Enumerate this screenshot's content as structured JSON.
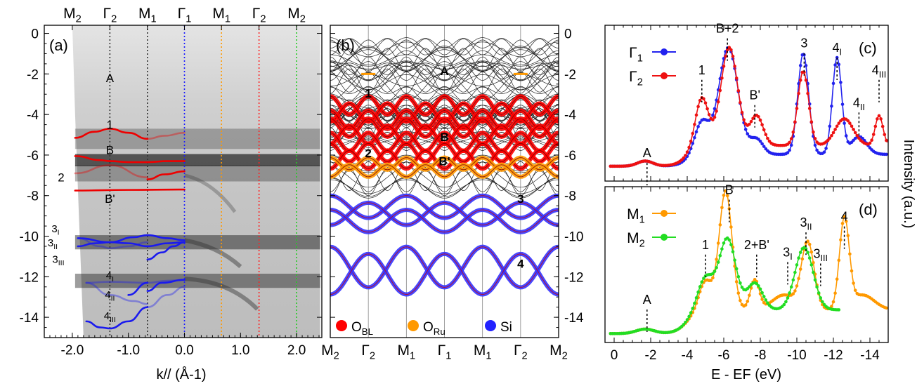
{
  "chart_data": [
    {
      "panel": "(a)",
      "type": "heatmap",
      "xlabel": "k// (Å-1)",
      "x_ticks": [
        -2.0,
        -1.0,
        0.0,
        1.0,
        2.0
      ],
      "x_tick_labels": [
        "-2.0",
        "-1.0",
        "0.0",
        "1.0",
        "2.0"
      ],
      "xlim": [
        -2.5,
        2.45
      ],
      "ylim": [
        -15,
        0.4
      ],
      "y_ticks": [
        0,
        -2,
        -4,
        -6,
        -8,
        -10,
        -12,
        -14
      ],
      "top_labels": [
        {
          "text": "M",
          "sub": "2",
          "k": -2.0
        },
        {
          "text": "Γ",
          "sub": "2",
          "k": -1.33
        },
        {
          "text": "M",
          "sub": "1",
          "k": -0.66
        },
        {
          "text": "Γ",
          "sub": "1",
          "k": 0.0
        },
        {
          "text": "M",
          "sub": "1",
          "k": 0.66
        },
        {
          "text": "Γ",
          "sub": "2",
          "k": 1.33
        },
        {
          "text": "M",
          "sub": "2",
          "k": 2.0
        }
      ],
      "vlines": [
        {
          "k": -1.33,
          "color": "#333333"
        },
        {
          "k": -0.66,
          "color": "#333333"
        },
        {
          "k": 0.0,
          "color": "#1a1aff"
        },
        {
          "k": 0.66,
          "color": "#ff9900"
        },
        {
          "k": 1.33,
          "color": "#ff2222"
        },
        {
          "k": 2.0,
          "color": "#22cc22"
        }
      ],
      "intensity_bands": [
        {
          "e": -5.2,
          "w": 0.5,
          "a": 0.35
        },
        {
          "e": -6.25,
          "w": 0.3,
          "a": 0.85
        },
        {
          "e": -6.9,
          "w": 0.4,
          "a": 0.4
        },
        {
          "e": -10.3,
          "w": 0.35,
          "a": 0.6
        },
        {
          "e": -12.2,
          "w": 0.35,
          "a": 0.55
        }
      ],
      "bands": [
        {
          "name": "A",
          "color": "#ff8800",
          "label_k": -1.33,
          "label_e": -2.2,
          "points": []
        },
        {
          "name": "1",
          "color": "#ee0000",
          "label_k": -1.33,
          "label_e": -4.5,
          "points": [
            [
              -1.95,
              -5.15
            ],
            [
              -1.6,
              -4.85
            ],
            [
              -1.33,
              -4.7
            ],
            [
              -1.0,
              -4.9
            ],
            [
              -0.66,
              -5.2
            ]
          ]
        },
        {
          "name": "1f",
          "color": "#ee0000",
          "faint": true,
          "points": [
            [
              -0.66,
              -5.2
            ],
            [
              -0.35,
              -5.05
            ],
            [
              0.0,
              -4.9
            ]
          ]
        },
        {
          "name": "B",
          "color": "#ee0000",
          "label_k": -1.33,
          "label_e": -5.75,
          "points": [
            [
              -1.95,
              -6.05
            ],
            [
              -1.5,
              -6.25
            ],
            [
              -1.33,
              -6.3
            ],
            [
              -1.0,
              -6.35
            ],
            [
              -0.66,
              -6.35
            ],
            [
              -0.3,
              -6.3
            ],
            [
              0.0,
              -6.3
            ]
          ]
        },
        {
          "name": "2",
          "color": "#ee0000",
          "label_k": -2.2,
          "label_e": -7.1,
          "faint": true,
          "points": [
            [
              -1.95,
              -6.9
            ],
            [
              -1.33,
              -6.5
            ],
            [
              -0.66,
              -7.1
            ]
          ]
        },
        {
          "name": "2b",
          "color": "#ee0000",
          "points": [
            [
              -0.66,
              -7.2
            ],
            [
              -0.35,
              -6.95
            ],
            [
              0.0,
              -6.8
            ]
          ]
        },
        {
          "name": "B'",
          "color": "#ee0000",
          "label_k": -1.33,
          "label_e": -8.15,
          "points": [
            [
              -1.95,
              -7.75
            ],
            [
              -1.0,
              -7.72
            ],
            [
              0.0,
              -7.7
            ]
          ]
        },
        {
          "name": "3a",
          "color": "#1a1aee",
          "label": "3",
          "sub": "I",
          "label_k": -2.3,
          "label_e": -9.6,
          "points": [
            [
              -1.9,
              -10.1
            ],
            [
              -1.33,
              -10.3
            ],
            [
              -0.9,
              -10.05
            ],
            [
              -0.66,
              -9.95
            ],
            [
              -0.3,
              -10.1
            ],
            [
              0.0,
              -10.2
            ]
          ]
        },
        {
          "name": "3b",
          "color": "#1a1aee",
          "label": "3",
          "sub": "II",
          "label_k": -2.35,
          "label_e": -10.3,
          "points": [
            [
              -1.9,
              -10.5
            ],
            [
              -1.6,
              -10.35
            ],
            [
              -1.33,
              -10.3
            ],
            [
              -1.0,
              -10.35
            ],
            [
              -0.66,
              -10.5
            ],
            [
              -0.3,
              -10.35
            ],
            [
              0.0,
              -10.3
            ]
          ]
        },
        {
          "name": "3c",
          "color": "#1a1aee",
          "label": "3",
          "sub": "III",
          "label_k": -2.25,
          "label_e": -11.1,
          "points": [
            [
              -0.66,
              -11.15
            ],
            [
              -0.4,
              -10.8
            ],
            [
              -0.2,
              -10.5
            ],
            [
              0.0,
              -10.3
            ]
          ]
        },
        {
          "name": "3f",
          "color": "#1a1aee",
          "faint": true,
          "points": [
            [
              -1.9,
              -10.1
            ],
            [
              -1.5,
              -10.5
            ],
            [
              -1.33,
              -10.6
            ],
            [
              -1.0,
              -10.5
            ],
            [
              -0.66,
              -10.3
            ]
          ]
        },
        {
          "name": "4a",
          "color": "#1a1aee",
          "label": "4",
          "sub": "I",
          "label_k": -1.33,
          "label_e": -11.9,
          "faint": true,
          "points": [
            [
              -1.75,
              -12.3
            ],
            [
              -1.33,
              -12.25
            ],
            [
              -0.66,
              -12.3
            ],
            [
              -0.3,
              -12.2
            ],
            [
              0.0,
              -12.15
            ]
          ]
        },
        {
          "name": "4ab",
          "color": "#1a1aee",
          "points": [
            [
              -0.66,
              -12.7
            ],
            [
              -0.4,
              -12.3
            ],
            [
              0.0,
              -12.15
            ]
          ]
        },
        {
          "name": "4b",
          "color": "#1a1aee",
          "label": "4",
          "sub": "II",
          "label_k": -1.33,
          "label_e": -12.85,
          "faint": true,
          "points": [
            [
              -1.75,
              -12.3
            ],
            [
              -1.33,
              -12.9
            ],
            [
              -0.9,
              -13.2
            ],
            [
              -0.66,
              -13.35
            ]
          ]
        },
        {
          "name": "4bb",
          "color": "#1a1aee",
          "points": [
            [
              -1.0,
              -12.9
            ],
            [
              -0.66,
              -12.3
            ]
          ]
        },
        {
          "name": "4c",
          "color": "#1a1aee",
          "label": "4",
          "sub": "III",
          "label_k": -1.33,
          "label_e": -13.9,
          "points": [
            [
              -1.75,
              -14.2
            ],
            [
              -1.5,
              -14.5
            ],
            [
              -1.33,
              -14.55
            ],
            [
              -1.0,
              -14.2
            ],
            [
              -0.66,
              -13.5
            ]
          ]
        },
        {
          "name": "4cf",
          "color": "#1a1aee",
          "faint": true,
          "points": [
            [
              -0.66,
              -13.5
            ],
            [
              -0.3,
              -12.9
            ],
            [
              0.0,
              -12.5
            ]
          ]
        }
      ]
    },
    {
      "panel": "(b)",
      "type": "line",
      "ylim": [
        -15,
        0.4
      ],
      "y_ticks": [
        0,
        -2,
        -4,
        -6,
        -8,
        -10,
        -12,
        -14
      ],
      "x_labels": [
        {
          "text": "M",
          "sub": "2"
        },
        {
          "text": "Γ",
          "sub": "2"
        },
        {
          "text": "M",
          "sub": "1"
        },
        {
          "text": "Γ",
          "sub": "1"
        },
        {
          "text": "M",
          "sub": "1"
        },
        {
          "text": "Γ",
          "sub": "2"
        },
        {
          "text": "M",
          "sub": "2"
        }
      ],
      "manifolds": [
        {
          "name": "A",
          "center": -2.0,
          "amp": 0.05,
          "count": 1,
          "color": "#ff9900"
        },
        {
          "name": "1",
          "center": -3.9,
          "amp": 0.45,
          "count": 3,
          "color": "#ff0000"
        },
        {
          "name": "B",
          "center": -5.0,
          "amp": 0.45,
          "count": 3,
          "color": "#ff0000"
        },
        {
          "name": "2",
          "center": -6.05,
          "amp": 0.45,
          "count": 2,
          "color": "#ff0000"
        },
        {
          "name": "B'",
          "center": -6.6,
          "amp": 0.3,
          "count": 2,
          "color": "#ff9900"
        },
        {
          "name": "3",
          "center": -8.9,
          "amp": 0.55,
          "count": 3,
          "color": "#3333ff"
        },
        {
          "name": "4",
          "center": -11.7,
          "amp": 1.0,
          "count": 2,
          "color": "#3333ff"
        }
      ],
      "manifold_labels": [
        {
          "text": "A",
          "pos": 3,
          "e": -1.85
        },
        {
          "text": "1",
          "pos": 1,
          "e": -2.95
        },
        {
          "text": "B",
          "pos": 3,
          "e": -5.1
        },
        {
          "text": "2",
          "pos": 1,
          "e": -5.9
        },
        {
          "text": "B'",
          "pos": 3,
          "e": -6.3
        },
        {
          "text": "3",
          "pos": 5,
          "e": -8.15
        },
        {
          "text": "4",
          "pos": 5,
          "e": -11.35
        }
      ],
      "legend": [
        {
          "label": "O",
          "sub": "BL",
          "color": "#ff0000"
        },
        {
          "label": "O",
          "sub": "Ru",
          "color": "#ff9900"
        },
        {
          "label": "Si",
          "sub": "",
          "color": "#2222ff"
        }
      ]
    },
    {
      "panel": "(c)",
      "type": "line",
      "xlim": [
        0.5,
        -15
      ],
      "ylim": [
        0,
        1.05
      ],
      "x_ticks": [
        0,
        -2,
        -4,
        -6,
        -8,
        -10,
        -12,
        -14
      ],
      "series": [
        {
          "name": "Γ",
          "sub": "1",
          "color": "#2222ee",
          "peaks": [
            [
              -1.7,
              0.035,
              0.6
            ],
            [
              -4.8,
              0.22,
              0.55
            ],
            [
              -6.25,
              0.72,
              0.75
            ],
            [
              -7.8,
              0.1,
              0.5
            ],
            [
              -10.35,
              0.68,
              0.42
            ],
            [
              -12.2,
              0.65,
              0.36
            ],
            [
              -13.4,
              0.12,
              0.6
            ]
          ],
          "base": 0.1,
          "step": [
            -4.0,
            0.08
          ]
        },
        {
          "name": "Γ",
          "sub": "2",
          "color": "#ee1111",
          "peaks": [
            [
              -1.7,
              0.035,
              0.6
            ],
            [
              -4.8,
              0.33,
              0.5
            ],
            [
              -6.3,
              0.66,
              0.65
            ],
            [
              -7.8,
              0.2,
              0.5
            ],
            [
              -10.35,
              0.5,
              0.42
            ],
            [
              -12.6,
              0.18,
              0.7
            ],
            [
              -14.5,
              0.2,
              0.3
            ]
          ],
          "base": 0.1,
          "step": [
            -4.0,
            0.14
          ]
        }
      ],
      "annotations": [
        {
          "text": "A",
          "sub": "",
          "e": -1.8,
          "y": 0.16
        },
        {
          "text": "1",
          "sub": "",
          "e": -4.8,
          "y": 0.72
        },
        {
          "text": "B+2",
          "sub": "",
          "e": -6.2,
          "y": 1.0
        },
        {
          "text": "B'",
          "sub": "",
          "e": -7.7,
          "y": 0.55
        },
        {
          "text": "3",
          "sub": "",
          "e": -10.4,
          "y": 0.9
        },
        {
          "text": "4",
          "sub": "I",
          "e": -12.2,
          "y": 0.87
        },
        {
          "text": "4",
          "sub": "II",
          "e": -13.4,
          "y": 0.5
        },
        {
          "text": "4",
          "sub": "III",
          "e": -14.5,
          "y": 0.72
        }
      ]
    },
    {
      "panel": "(d)",
      "type": "line",
      "xlabel": "E - EF (eV)",
      "ylabel": "Intensity (a.u.)",
      "xlim": [
        0.5,
        -15
      ],
      "ylim": [
        0,
        1.05
      ],
      "x_ticks": [
        0,
        -2,
        -4,
        -6,
        -8,
        -10,
        -12,
        -14
      ],
      "x_tick_labels": [
        "0",
        "-2",
        "-4",
        "-6",
        "-8",
        "-10",
        "-12",
        "-14"
      ],
      "series": [
        {
          "name": "M",
          "sub": "1",
          "color": "#ff9900",
          "peaks": [
            [
              -1.7,
              0.03,
              0.7
            ],
            [
              -5.0,
              0.2,
              0.5
            ],
            [
              -6.1,
              0.8,
              0.5
            ],
            [
              -7.7,
              0.2,
              0.35
            ],
            [
              -9.3,
              0.1,
              0.9
            ],
            [
              -10.6,
              0.45,
              0.5
            ],
            [
              -12.6,
              0.6,
              0.38
            ],
            [
              -13.6,
              0.1,
              0.9
            ]
          ],
          "base": 0.06,
          "step": [
            -4.0,
            0.16
          ]
        },
        {
          "name": "M",
          "sub": "2",
          "color": "#22dd22",
          "xmax": -12.4,
          "peaks": [
            [
              -1.7,
              0.03,
              0.7
            ],
            [
              -5.0,
              0.22,
              0.6
            ],
            [
              -6.2,
              0.48,
              0.65
            ],
            [
              -7.7,
              0.18,
              0.6
            ],
            [
              -10.4,
              0.42,
              0.7
            ]
          ],
          "base": 0.06,
          "step": [
            -4.0,
            0.16
          ]
        }
      ],
      "annotations": [
        {
          "text": "A",
          "sub": "",
          "e": -1.8,
          "y": 0.26
        },
        {
          "text": "1",
          "sub": "",
          "e": -5.0,
          "y": 0.63
        },
        {
          "text": "B",
          "sub": "",
          "e": -6.3,
          "y": 1.0
        },
        {
          "text": "2+B'",
          "sub": "",
          "e": -7.8,
          "y": 0.63
        },
        {
          "text": "3",
          "sub": "I",
          "e": -9.5,
          "y": 0.58
        },
        {
          "text": "3",
          "sub": "II",
          "e": -10.5,
          "y": 0.78
        },
        {
          "text": "3",
          "sub": "III",
          "e": -11.3,
          "y": 0.57
        },
        {
          "text": "4",
          "sub": "",
          "e": -12.6,
          "y": 0.82
        }
      ]
    }
  ]
}
